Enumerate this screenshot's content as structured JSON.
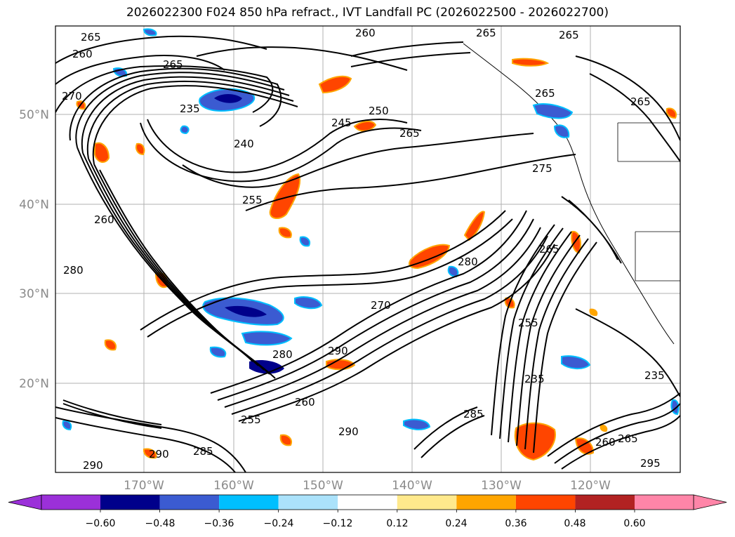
{
  "title": "2026022300 F024 850 hPa refract., IVT Landfall PC (2026022500 - 2026022700)",
  "map": {
    "lat_labels": [
      "50°N",
      "40°N",
      "30°N",
      "20°N"
    ],
    "lon_labels": [
      "170°W",
      "160°W",
      "150°W",
      "140°W",
      "130°W",
      "120°W"
    ],
    "contour_labels": [
      "265",
      "260",
      "265",
      "260",
      "265",
      "270",
      "265",
      "235",
      "240",
      "245",
      "250",
      "265",
      "265",
      "265",
      "275",
      "255",
      "260",
      "280",
      "280",
      "270",
      "265",
      "255",
      "235",
      "280",
      "290",
      "260",
      "255",
      "290",
      "285",
      "290",
      "285",
      "290",
      "295",
      "265",
      "260",
      "235"
    ]
  },
  "colorbar": {
    "tick_labels": [
      "−0.60",
      "−0.48",
      "−0.36",
      "−0.24",
      "−0.12",
      "0.12",
      "0.24",
      "0.36",
      "0.48",
      "0.60"
    ],
    "colors": [
      "#9b30d9",
      "#00008b",
      "#3b5bd1",
      "#00bfff",
      "#abe2fb",
      "#ffffff",
      "#ffe98c",
      "#ffa500",
      "#ff4500",
      "#b22222",
      "#ff85a8"
    ]
  },
  "shading_colors": {
    "neg_strong": "#00008b",
    "neg_mid": "#3b5bd1",
    "neg_light": "#00bfff",
    "pos_light": "#ffa500",
    "pos_strong": "#ff4500",
    "pos_yellow": "#ffe98c"
  }
}
